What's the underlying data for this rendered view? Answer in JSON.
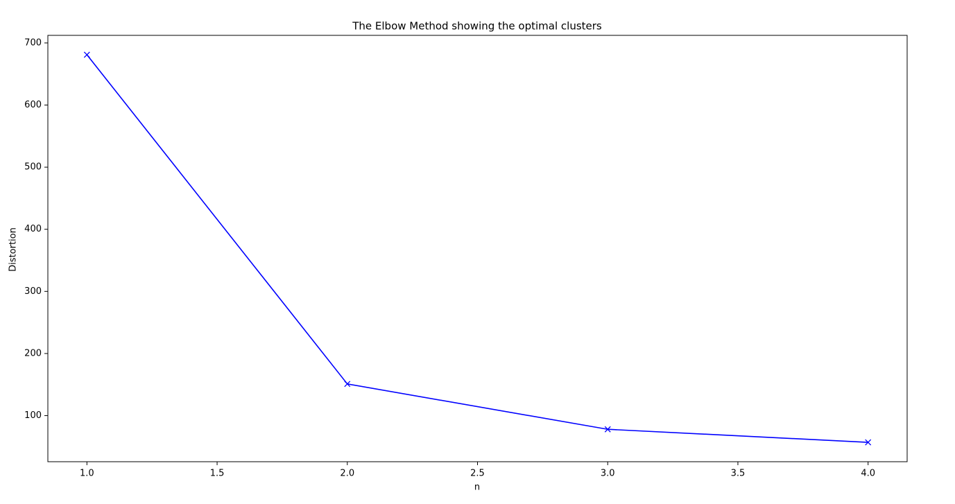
{
  "chart_data": {
    "type": "line",
    "title": "The Elbow Method showing the optimal clusters",
    "xlabel": "n",
    "ylabel": "Distortion",
    "x": [
      1,
      2,
      3,
      4
    ],
    "series": [
      {
        "name": "Distortion",
        "color": "#0000ff",
        "marker": "x",
        "values": [
          681,
          151,
          78,
          57
        ]
      }
    ],
    "xlim": [
      0.85,
      4.15
    ],
    "xticks": [
      {
        "value": 1,
        "label": "1.0"
      },
      {
        "value": 1.5,
        "label": "1.5"
      },
      {
        "value": 2,
        "label": "2.0"
      },
      {
        "value": 2.5,
        "label": "2.5"
      },
      {
        "value": 3,
        "label": "3.0"
      },
      {
        "value": 3.5,
        "label": "3.5"
      },
      {
        "value": 4,
        "label": "4.0"
      }
    ],
    "ylim": [
      25.8,
      712.2
    ],
    "yticks": [
      100,
      200,
      300,
      400,
      500,
      600,
      700
    ],
    "grid": false
  }
}
